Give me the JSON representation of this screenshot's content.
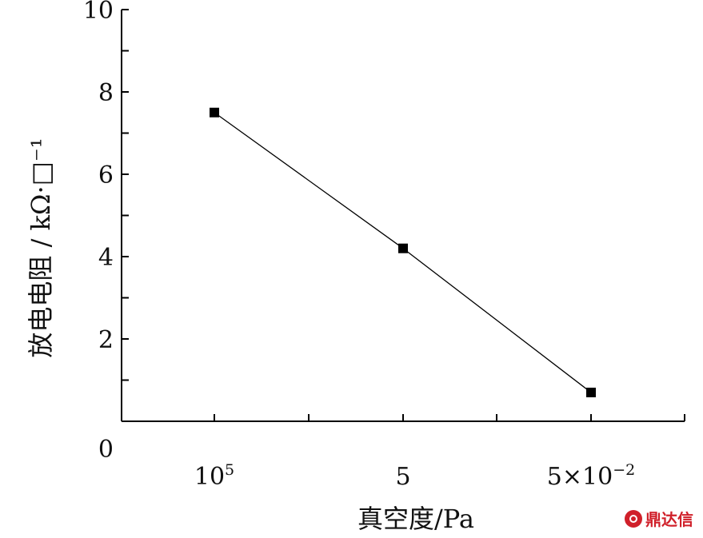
{
  "chart_data": {
    "type": "line",
    "xlabel": "真空度/Pa",
    "ylabel": "放电电阻 / kΩ·□⁻¹",
    "categories": [
      {
        "base": "10",
        "sup": "5"
      },
      {
        "base": "5",
        "sup": ""
      },
      {
        "base": "5×10",
        "sup": "−2"
      }
    ],
    "series": [
      {
        "values": [
          7.5,
          4.2,
          0.7
        ]
      }
    ],
    "ylim": [
      0,
      10
    ],
    "yticks": [
      "0",
      "2",
      "4",
      "6",
      "8",
      "10"
    ],
    "grid": false,
    "legend": "none",
    "marker": "square",
    "color": "#000000"
  },
  "watermark": {
    "text": "鼎达信",
    "color": "#d0202a"
  }
}
